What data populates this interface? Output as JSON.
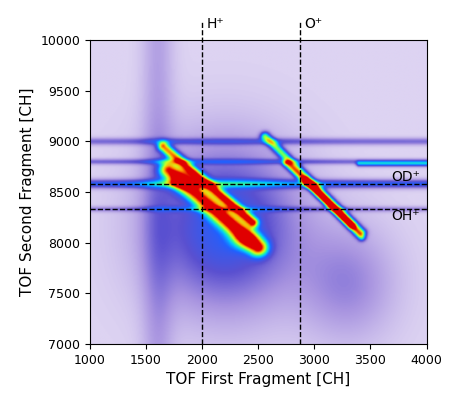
{
  "chart_data": {
    "type": "heatmap",
    "x_label": "TOF First Fragment [CH]",
    "y_label": "TOF Second Fragment [CH]",
    "xlim": [
      1000,
      4000
    ],
    "xticks": [
      1000,
      1500,
      2000,
      2500,
      3000,
      3500,
      4000
    ],
    "ylim": [
      7000,
      10000
    ],
    "yticks": [
      7000,
      7500,
      8000,
      8500,
      9000,
      9500,
      10000
    ],
    "grid": false,
    "vlines": [
      {
        "x": 2000,
        "label": "H⁺"
      },
      {
        "x": 2870,
        "label": "O⁺"
      }
    ],
    "hlines": [
      {
        "y": 8580,
        "label": "OD⁺"
      },
      {
        "y": 8330,
        "label": "OH⁺"
      }
    ],
    "stripes": [
      {
        "x": [
          1650,
          2450
        ],
        "y": [
          8950,
          8200
        ],
        "width": 35,
        "intensity": 0.75
      },
      {
        "x": [
          1700,
          2500
        ],
        "y": [
          8720,
          7950
        ],
        "width": 60,
        "intensity": 0.8
      },
      {
        "x": [
          2560,
          3420
        ],
        "y": [
          9050,
          8100
        ],
        "width": 30,
        "intensity": 0.6
      },
      {
        "x": [
          2750,
          3330
        ],
        "y": [
          8780,
          8170
        ],
        "width": 25,
        "intensity": 0.5
      },
      {
        "x": [
          2920,
          3420
        ],
        "y": [
          8620,
          8050
        ],
        "width": 25,
        "intensity": 0.45
      },
      {
        "x": [
          1000,
          4000
        ],
        "y": [
          9000,
          9000
        ],
        "width": 25,
        "intensity": 0.2
      },
      {
        "x": [
          1000,
          4000
        ],
        "y": [
          8800,
          8800
        ],
        "width": 20,
        "intensity": 0.2
      },
      {
        "x": [
          3400,
          4000
        ],
        "y": [
          8780,
          8780
        ],
        "width": 20,
        "intensity": 0.4
      },
      {
        "x": [
          1000,
          4000
        ],
        "y": [
          8580,
          8580
        ],
        "width": 30,
        "intensity": 0.35
      },
      {
        "x": [
          1000,
          4000
        ],
        "y": [
          8330,
          8330
        ],
        "width": 20,
        "intensity": 0.15
      },
      {
        "x": [
          1600,
          1600
        ],
        "y": [
          7000,
          10000
        ],
        "width": 100,
        "intensity": 0.1
      }
    ],
    "blobs": [
      {
        "x": 1830,
        "y": 8620,
        "width": [
          80,
          80
        ],
        "intensity": 0.35
      },
      {
        "x": 2380,
        "y": 8030,
        "width": [
          90,
          70
        ],
        "intensity": 0.3
      },
      {
        "x": 2200,
        "y": 8150,
        "width": [
          450,
          550
        ],
        "intensity": 0.35
      },
      {
        "x": 3300,
        "y": 7600,
        "width": [
          300,
          400
        ],
        "intensity": 0.15
      }
    ]
  }
}
